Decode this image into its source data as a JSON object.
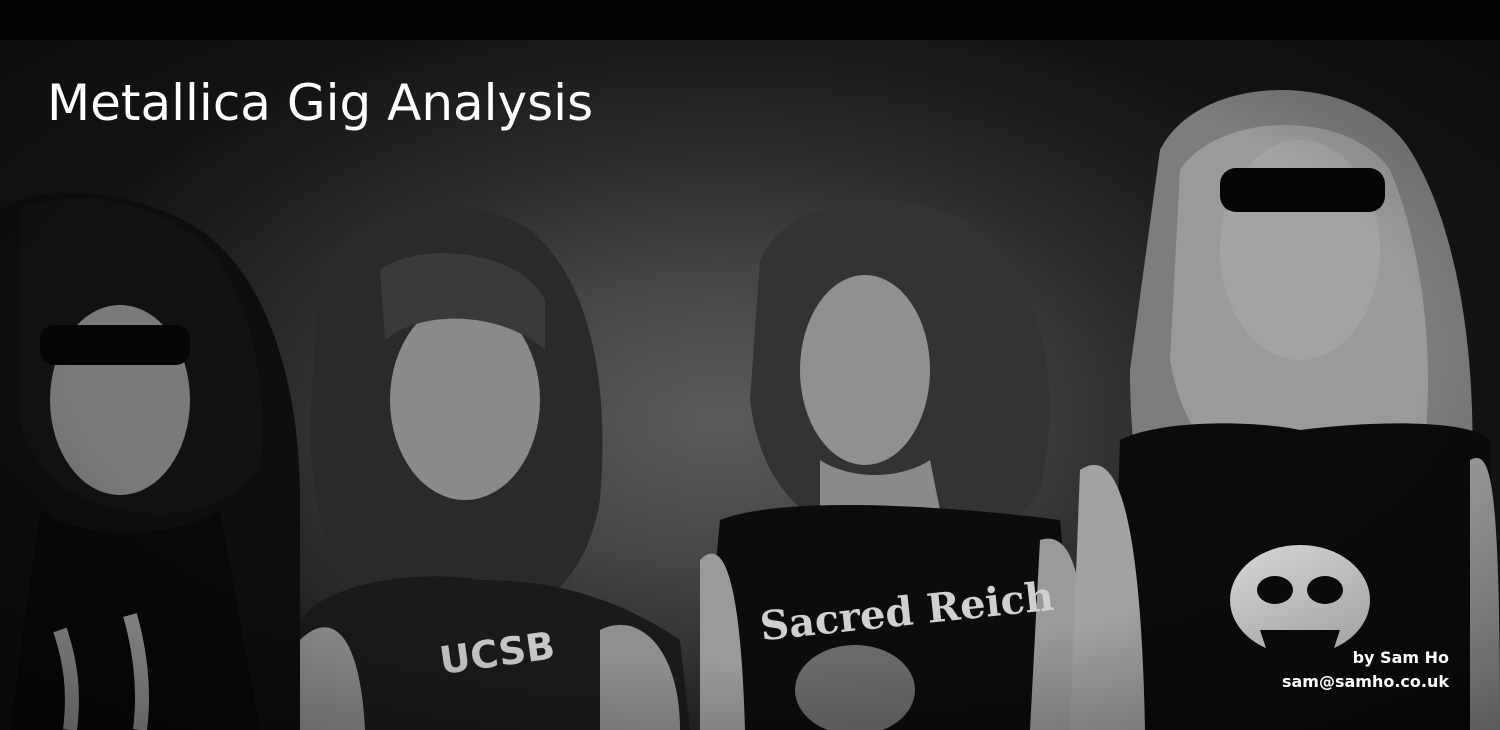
{
  "header": {
    "title": "Metallica Gig Analysis"
  },
  "credit": {
    "byline": "by Sam Ho",
    "email": "sam@samho.co.uk"
  },
  "photo": {
    "subject": "band-photo",
    "shirt_texts": [
      "UCSB",
      "Sacred Reich"
    ]
  },
  "colors": {
    "background": "#000000",
    "text": "#ffffff"
  }
}
